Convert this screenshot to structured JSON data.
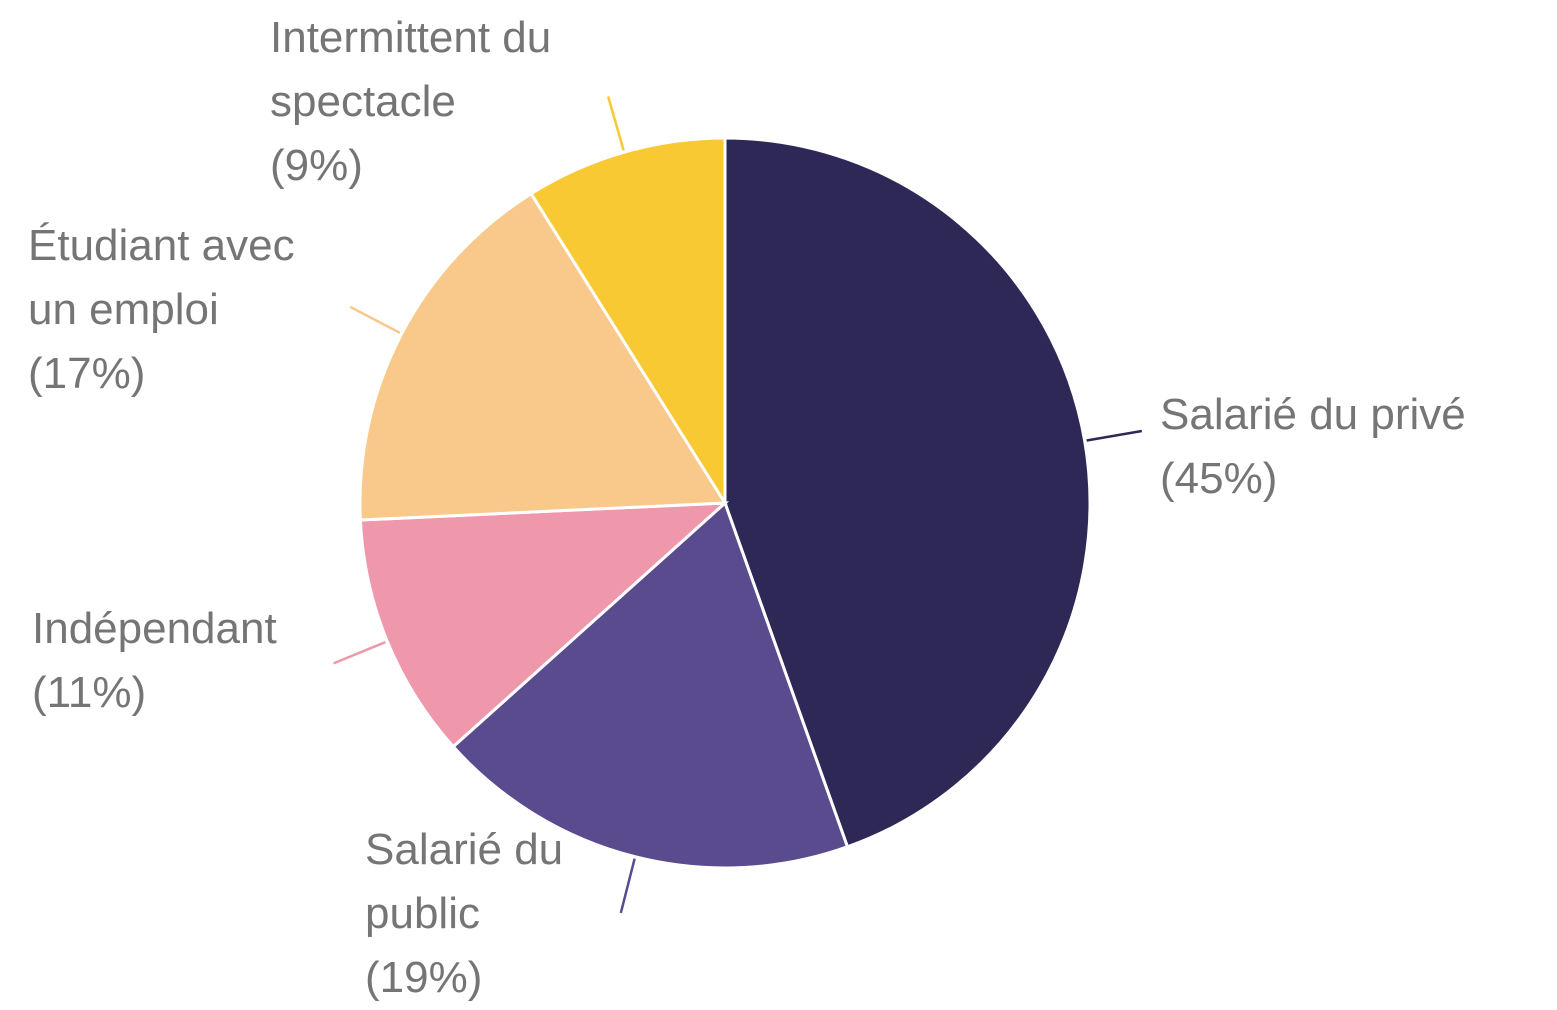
{
  "chart_data": {
    "type": "pie",
    "categories": [
      "Salarié du privé",
      "Salarié du public",
      "Indépendant",
      "Étudiant avec un emploi",
      "Intermittent du spectacle"
    ],
    "values": [
      45,
      19,
      11,
      17,
      9
    ],
    "value_labels": [
      "(45%)",
      "(19%)",
      "(11%)",
      "(17%)",
      "(9%)"
    ],
    "colors": [
      "#2e2856",
      "#5a4b8e",
      "#ef97ab",
      "#f8c98a",
      "#f9c933"
    ]
  }
}
